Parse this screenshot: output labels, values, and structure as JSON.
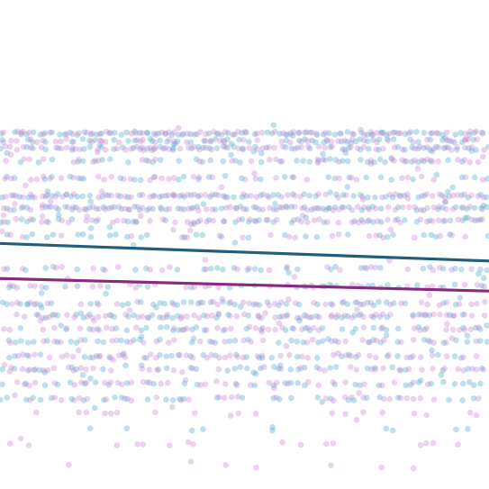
{
  "chart_data": {
    "type": "scatter",
    "title": "",
    "xlabel": "",
    "ylabel": "",
    "grid": false,
    "legend": "none",
    "xlim": [
      0,
      1
    ],
    "ylim": [
      0,
      8.5
    ],
    "point_opacity": 0.35,
    "series": [
      {
        "color": "#4aa3c8",
        "trend": {
          "y_start": 4.9,
          "y_end": 4.55,
          "color": "#1f5f7a"
        },
        "bands": [
          {
            "y": 7.1,
            "density": 0.9
          },
          {
            "y": 6.95,
            "density": 0.6
          },
          {
            "y": 6.8,
            "density": 0.75
          },
          {
            "y": 6.55,
            "density": 0.55
          },
          {
            "y": 6.2,
            "density": 0.35
          },
          {
            "y": 5.85,
            "density": 0.7
          },
          {
            "y": 5.6,
            "density": 0.8
          },
          {
            "y": 5.35,
            "density": 0.6
          },
          {
            "y": 5.05,
            "density": 0.35
          },
          {
            "y": 4.4,
            "density": 0.3
          },
          {
            "y": 4.05,
            "density": 0.4
          },
          {
            "y": 3.7,
            "density": 0.55
          },
          {
            "y": 3.45,
            "density": 0.6
          },
          {
            "y": 3.2,
            "density": 0.45
          },
          {
            "y": 2.95,
            "density": 0.55
          },
          {
            "y": 2.65,
            "density": 0.5
          },
          {
            "y": 2.4,
            "density": 0.45
          },
          {
            "y": 2.1,
            "density": 0.4
          },
          {
            "y": 1.8,
            "density": 0.3
          },
          {
            "y": 1.2,
            "density": 0.1
          }
        ]
      },
      {
        "color": "#c77fd0",
        "trend": {
          "y_start": 4.2,
          "y_end": 3.95,
          "color": "#8a2a7e"
        },
        "bands": [
          {
            "y": 7.1,
            "density": 0.85
          },
          {
            "y": 6.95,
            "density": 0.55
          },
          {
            "y": 6.8,
            "density": 0.7
          },
          {
            "y": 6.55,
            "density": 0.5
          },
          {
            "y": 6.2,
            "density": 0.4
          },
          {
            "y": 5.85,
            "density": 0.75
          },
          {
            "y": 5.6,
            "density": 0.85
          },
          {
            "y": 5.35,
            "density": 0.65
          },
          {
            "y": 5.05,
            "density": 0.3
          },
          {
            "y": 4.4,
            "density": 0.3
          },
          {
            "y": 4.05,
            "density": 0.35
          },
          {
            "y": 3.7,
            "density": 0.5
          },
          {
            "y": 3.45,
            "density": 0.6
          },
          {
            "y": 3.2,
            "density": 0.5
          },
          {
            "y": 2.95,
            "density": 0.5
          },
          {
            "y": 2.65,
            "density": 0.55
          },
          {
            "y": 2.4,
            "density": 0.5
          },
          {
            "y": 2.1,
            "density": 0.45
          },
          {
            "y": 1.8,
            "density": 0.35
          },
          {
            "y": 1.5,
            "density": 0.2
          },
          {
            "y": 0.9,
            "density": 0.15
          },
          {
            "y": 0.45,
            "density": 0.1
          }
        ]
      }
    ]
  }
}
